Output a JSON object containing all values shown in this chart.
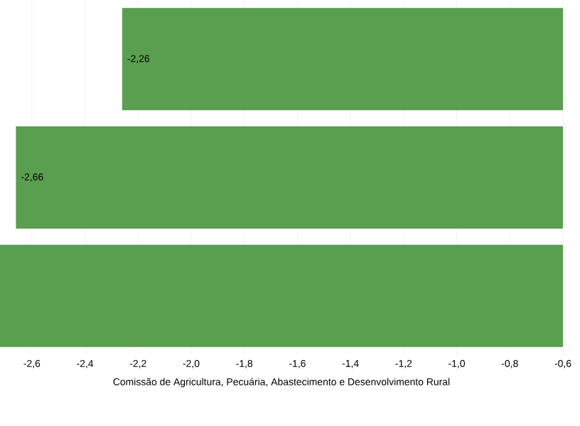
{
  "chart_data": {
    "type": "bar",
    "orientation": "horizontal",
    "xlabel": "Comissão de Agricultura, Pecuária, Abastecimento e Desenvolvimento Rural",
    "categories": [
      null,
      null,
      null
    ],
    "values": [
      -2.26,
      -2.66,
      -2.72
    ],
    "value_labels": [
      "-2,26",
      "-2,66",
      null
    ],
    "color": "#5a9e4f",
    "xlim": [
      -2.72,
      -0.6
    ],
    "xticks": [
      {
        "value": -2.6,
        "label": "-2,6"
      },
      {
        "value": -2.4,
        "label": "-2,4"
      },
      {
        "value": -2.2,
        "label": "-2,2"
      },
      {
        "value": -2.0,
        "label": "-2,0"
      },
      {
        "value": -1.8,
        "label": "-1,8"
      },
      {
        "value": -1.6,
        "label": "-1,6"
      },
      {
        "value": -1.4,
        "label": "-1,4"
      },
      {
        "value": -1.2,
        "label": "-1,2"
      },
      {
        "value": -1.0,
        "label": "-1,0"
      },
      {
        "value": -0.8,
        "label": "-0,8"
      },
      {
        "value": -0.6,
        "label": "-0,6"
      }
    ],
    "grid": "x"
  }
}
